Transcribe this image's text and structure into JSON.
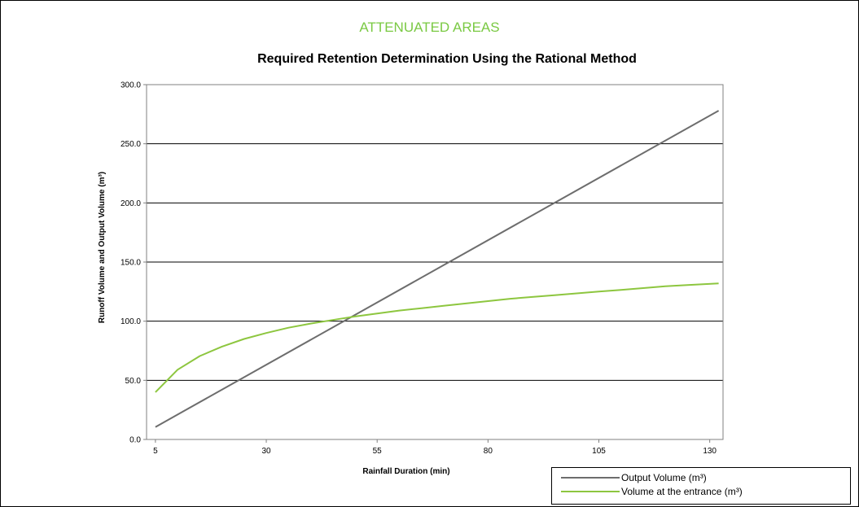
{
  "header": {
    "title": "ATTENUATED AREAS"
  },
  "chart_data": {
    "type": "line",
    "title": "Required Retention Determination Using the Rational Method",
    "xlabel": "Rainfall Duration (min)",
    "ylabel": "Runoff Volume and Output Volume (m³)",
    "xlim": [
      3,
      133
    ],
    "ylim": [
      0,
      300
    ],
    "x_ticks": [
      "5",
      "30",
      "55",
      "80",
      "105",
      "130"
    ],
    "y_ticks": [
      "0.0",
      "50.0",
      "100.0",
      "150.0",
      "200.0",
      "250.0",
      "300.0"
    ],
    "grid": "horizontal",
    "legend_position": "bottom-right",
    "series": [
      {
        "name": "Output Volume (m³)",
        "color": "#6d6d6d",
        "x": [
          5,
          132
        ],
        "y": [
          10.5,
          278
        ]
      },
      {
        "name": "Volume at the entrance  (m³)",
        "color": "#8dc63f",
        "x": [
          5,
          10,
          15,
          20,
          25,
          30,
          35,
          40,
          45,
          50,
          55,
          60,
          65,
          70,
          75,
          80,
          85,
          90,
          95,
          100,
          105,
          110,
          115,
          120,
          125,
          132
        ],
        "y": [
          40,
          59,
          70.5,
          78.5,
          85,
          90,
          94.5,
          98,
          101,
          104,
          106.5,
          109,
          111,
          113,
          115,
          117,
          119,
          120.5,
          122,
          123.5,
          125,
          126.5,
          128,
          129.5,
          130.5,
          132
        ]
      }
    ]
  }
}
